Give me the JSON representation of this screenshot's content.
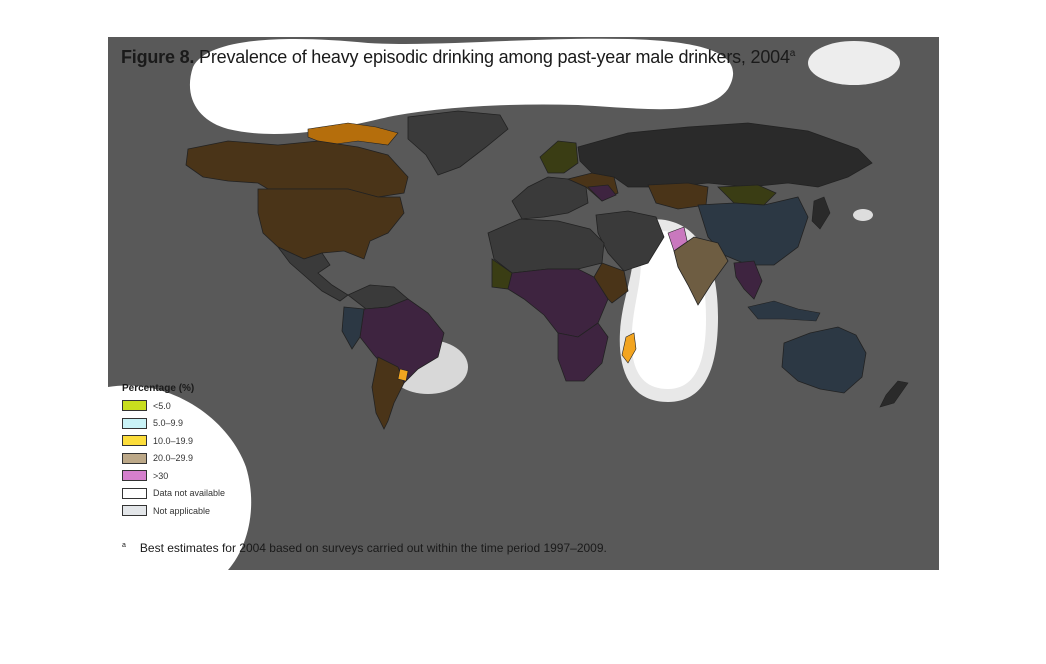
{
  "figure": {
    "label": "Figure 8.",
    "title": "Prevalence of heavy episodic drinking among past-year male drinkers, 2004",
    "title_sup": "a"
  },
  "legend": {
    "title": "Percentage (%)",
    "items": [
      {
        "label": "<5.0",
        "color": "#c8de1e"
      },
      {
        "label": "5.0–9.9",
        "color": "#c9f3f7"
      },
      {
        "label": "10.0–19.9",
        "color": "#fcdd3b"
      },
      {
        "label": "20.0–29.9",
        "color": "#bca888"
      },
      {
        "label": ">30",
        "color": "#d57fcd"
      },
      {
        "label": "Data not available",
        "color": "#ffffff"
      },
      {
        "label": "Not applicable",
        "color": "#e3e6e9"
      }
    ]
  },
  "footnote": {
    "mark": "a",
    "text": "Best estimates for 2004 based on surveys carried out within the time period 1997–2009."
  },
  "colors": {
    "background": "#595959",
    "brown_dark": "#4a3418",
    "purple_dark": "#3e2440",
    "blue_dark": "#2c3844",
    "olive_dark": "#3a3d14",
    "gray_dark": "#2a2a2a",
    "orange": "#f2a420",
    "white_highlight": "#ffffff"
  }
}
